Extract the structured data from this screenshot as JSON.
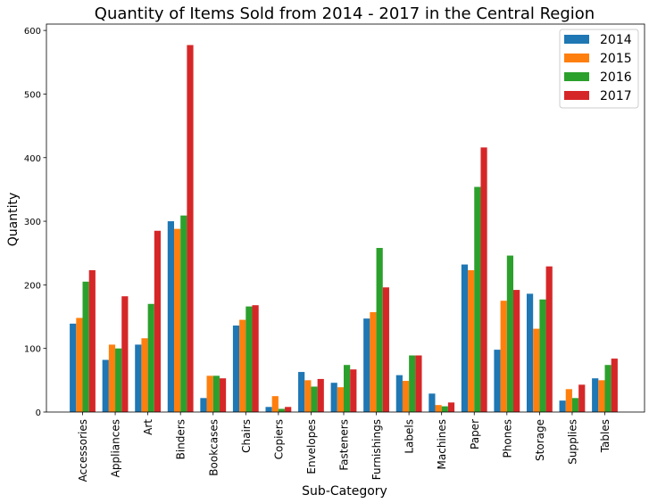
{
  "chart_data": {
    "type": "bar",
    "title": "Quantity of Items Sold from 2014 - 2017 in the Central Region",
    "xlabel": "Sub-Category",
    "ylabel": "Quantity",
    "ylim": [
      0,
      610
    ],
    "yticks": [
      "0",
      "100",
      "200",
      "300",
      "400",
      "500",
      "600"
    ],
    "grid": false,
    "legend_position": "top-right",
    "categories": [
      "Accessories",
      "Appliances",
      "Art",
      "Binders",
      "Bookcases",
      "Chairs",
      "Copiers",
      "Envelopes",
      "Fasteners",
      "Furnishings",
      "Labels",
      "Machines",
      "Paper",
      "Phones",
      "Storage",
      "Supplies",
      "Tables"
    ],
    "series": [
      {
        "name": "2014",
        "color": "#1f77b4",
        "values": [
          139,
          82,
          106,
          300,
          22,
          136,
          8,
          63,
          46,
          147,
          58,
          29,
          232,
          98,
          186,
          18,
          53
        ]
      },
      {
        "name": "2015",
        "color": "#ff7f0e",
        "values": [
          148,
          106,
          116,
          288,
          57,
          145,
          25,
          50,
          39,
          157,
          49,
          11,
          223,
          175,
          131,
          36,
          50
        ]
      },
      {
        "name": "2016",
        "color": "#2ca02c",
        "values": [
          205,
          100,
          170,
          309,
          57,
          166,
          5,
          40,
          74,
          258,
          89,
          9,
          354,
          246,
          177,
          22,
          74
        ]
      },
      {
        "name": "2017",
        "color": "#d62728",
        "values": [
          223,
          182,
          285,
          577,
          53,
          168,
          8,
          52,
          67,
          196,
          89,
          15,
          416,
          192,
          229,
          43,
          84
        ]
      }
    ]
  }
}
